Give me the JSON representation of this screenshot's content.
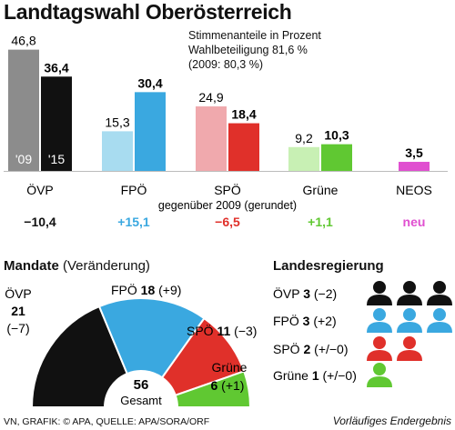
{
  "title": "Landtagswahl Oberösterreich",
  "info": {
    "line1": "Stimmenanteile in Prozent",
    "line2": "Wahlbeteiligung 81,6 %",
    "line3": "(2009: 80,3 %)"
  },
  "chart_data": [
    {
      "type": "bar",
      "categories": [
        "ÖVP",
        "FPÖ",
        "SPÖ",
        "Grüne",
        "NEOS"
      ],
      "series": [
        {
          "name": "'09",
          "values": [
            46.8,
            15.3,
            24.9,
            9.2,
            null
          ]
        },
        {
          "name": "'15",
          "values": [
            36.4,
            30.4,
            18.4,
            10.3,
            3.5
          ]
        }
      ],
      "value_labels": {
        "2009": [
          "46,8",
          "15,3",
          "24,9",
          "9,2",
          ""
        ],
        "2015": [
          "36,4",
          "30,4",
          "18,4",
          "10,3",
          "3,5"
        ]
      },
      "colors": {
        "2009": [
          "#8c8c8c",
          "#a8dcf0",
          "#f0a9ad",
          "#c8f0b4",
          ""
        ],
        "2015": [
          "#111111",
          "#3aa8e0",
          "#e0302a",
          "#60c832",
          "#e04fd0"
        ]
      },
      "change_caption": "gegenüber 2009 (gerundet)",
      "changes": [
        "−10,4",
        "+15,1",
        "−6,5",
        "+1,1",
        "neu"
      ],
      "change_colors": [
        "#111111",
        "#3aa8e0",
        "#e0302a",
        "#60c832",
        "#e04fd0"
      ],
      "ylim": [
        0,
        50
      ]
    },
    {
      "type": "pie",
      "title_bold": "Mandate",
      "title_rest": " (Veränderung)",
      "total": 56,
      "total_label": "Gesamt",
      "slices": [
        {
          "party": "ÖVP",
          "seats": 21,
          "change": "(−7)",
          "color": "#111111"
        },
        {
          "party": "FPÖ",
          "seats": 18,
          "change": "(+9)",
          "color": "#3aa8e0"
        },
        {
          "party": "SPÖ",
          "seats": 11,
          "change": "(−3)",
          "color": "#e0302a"
        },
        {
          "party": "Grüne",
          "seats": 6,
          "change": "(+1)",
          "color": "#60c832"
        }
      ]
    }
  ],
  "landesregierung": {
    "title": "Landesregierung",
    "rows": [
      {
        "party": "ÖVP",
        "seats": 3,
        "change": "(−2)",
        "color": "#111111"
      },
      {
        "party": "FPÖ",
        "seats": 3,
        "change": "(+2)",
        "color": "#3aa8e0"
      },
      {
        "party": "SPÖ",
        "seats": 2,
        "change": "(+/−0)",
        "color": "#e0302a"
      },
      {
        "party": "Grüne",
        "seats": 1,
        "change": "(+/−0)",
        "color": "#60c832"
      }
    ]
  },
  "footer": {
    "source": "VN, GRAFIK: © APA, QUELLE: APA/SORA/ORF",
    "note": "Vorläufiges Endergebnis"
  }
}
